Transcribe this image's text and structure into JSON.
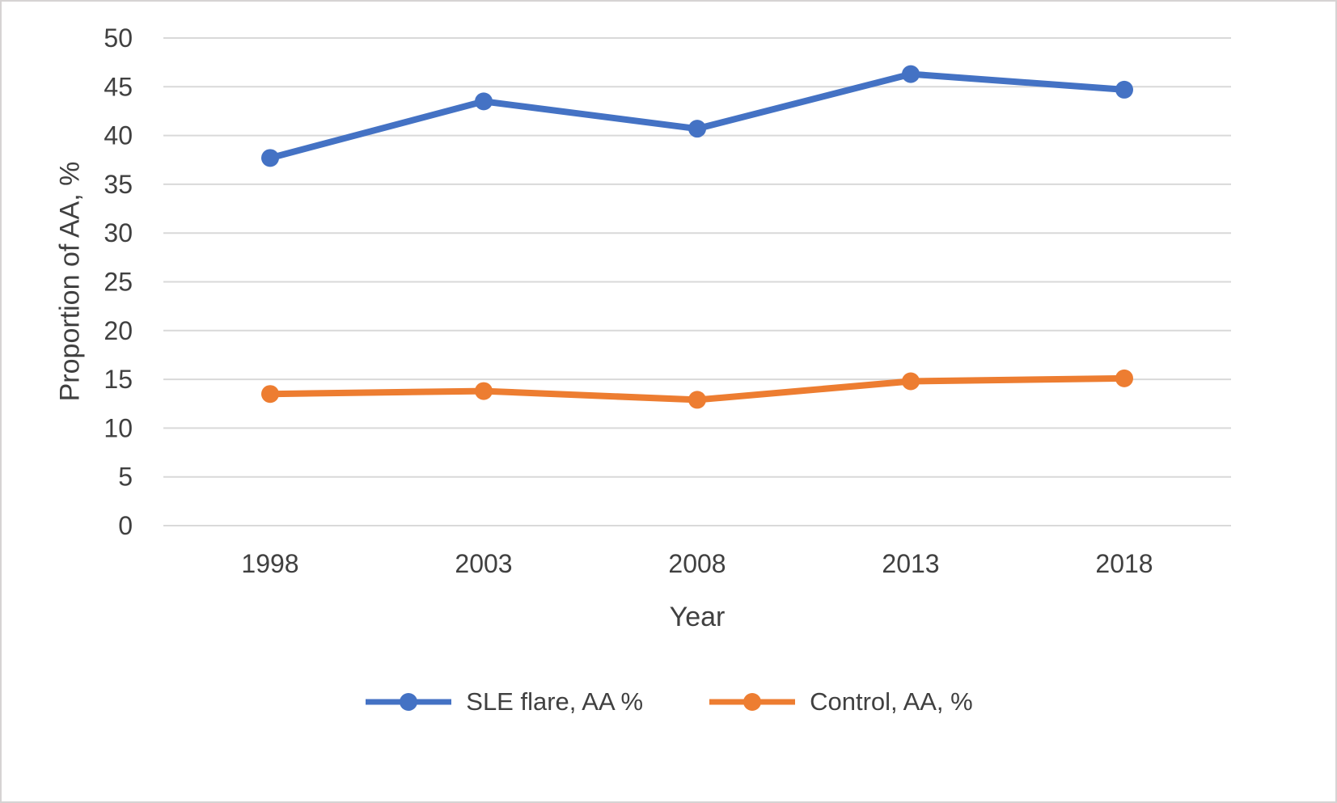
{
  "chart_data": {
    "type": "line",
    "title": "",
    "xlabel": "Year",
    "ylabel": "Proportion of AA, %",
    "categories": [
      "1998",
      "2003",
      "2008",
      "2013",
      "2018"
    ],
    "series": [
      {
        "name": "SLE flare, AA %",
        "color": "#4472C4",
        "values": [
          37.7,
          43.5,
          40.7,
          46.3,
          44.7
        ]
      },
      {
        "name": "Control, AA, %",
        "color": "#ED7D31",
        "values": [
          13.5,
          13.8,
          12.9,
          14.8,
          15.1
        ]
      }
    ],
    "ylim": [
      0,
      50
    ],
    "ytick_step": 5,
    "grid": "horizontal",
    "legend_position": "bottom"
  },
  "colors": {
    "grid": "#d9d9d9",
    "axis_text": "#404040",
    "background": "#ffffff",
    "border": "#d6d3d3"
  }
}
